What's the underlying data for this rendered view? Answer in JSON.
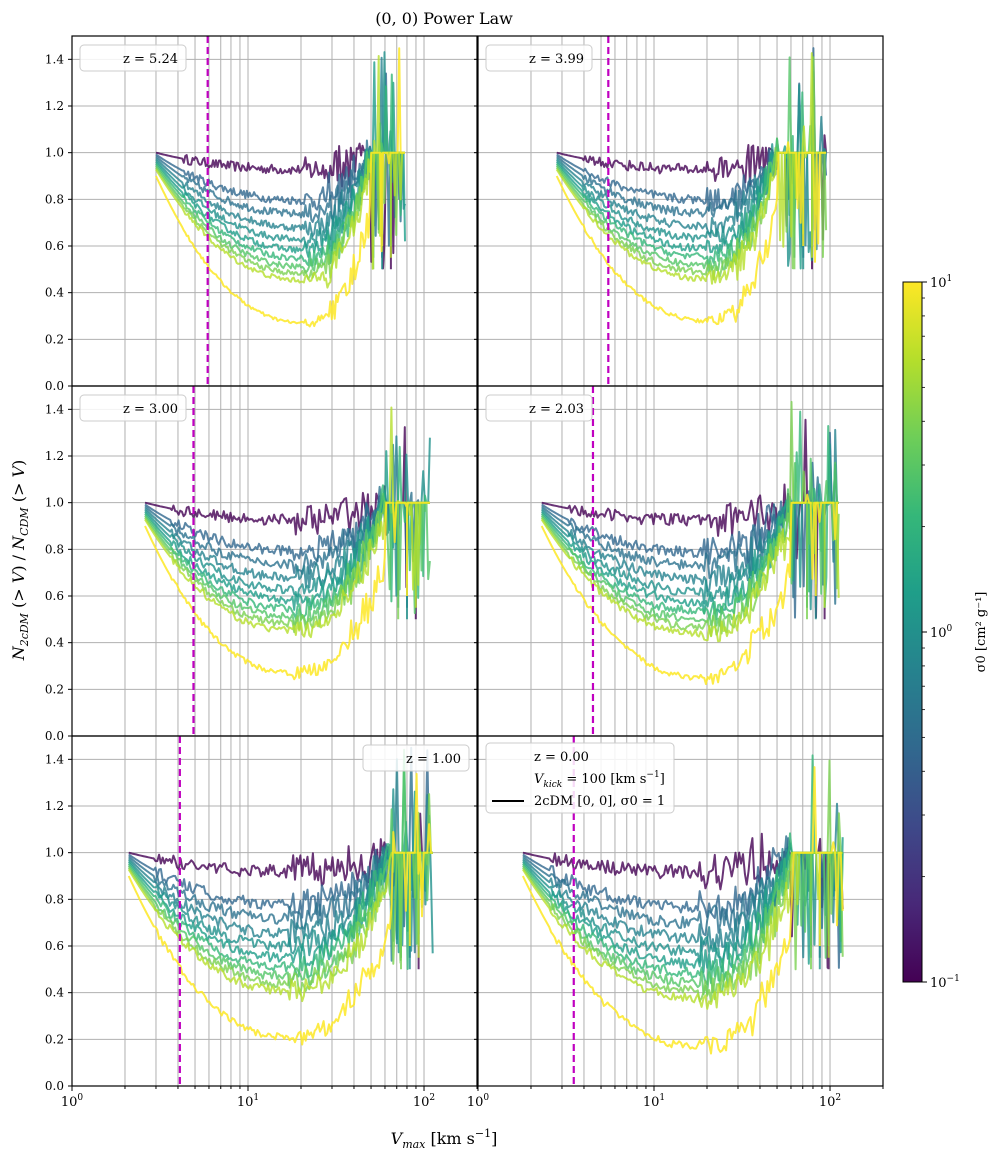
{
  "chart_data": {
    "type": "line",
    "title": "(0, 0) Power Law",
    "xlabel": "V_max [km s^-1]",
    "ylabel": "N_2cDM(>V)/N_CDM(>V)",
    "xscale": "log",
    "xlim": [
      1,
      200
    ],
    "ylim": [
      0,
      1.5
    ],
    "yticks": [
      "0.0",
      "0.2",
      "0.4",
      "0.6",
      "0.8",
      "1.0",
      "1.2",
      "1.4"
    ],
    "xticks": [
      {
        "base": "10",
        "exp": "0",
        "value": 1
      },
      {
        "base": "10",
        "exp": "1",
        "value": 10
      },
      {
        "base": "10",
        "exp": "2",
        "value": 100
      }
    ],
    "grid": true,
    "colorbar": {
      "label": "σ0 [cm² g⁻¹]",
      "scale": "log",
      "range": [
        0.1,
        10
      ],
      "ticks": [
        {
          "base": "10",
          "exp": "1",
          "value": 10
        },
        {
          "base": "10",
          "exp": "0",
          "value": 1
        },
        {
          "base": "10",
          "exp": "−1",
          "value": 0.1
        }
      ],
      "colormap": [
        "#440154",
        "#482878",
        "#3e4989",
        "#31688e",
        "#26828e",
        "#1f9e89",
        "#35b779",
        "#6ece58",
        "#b5de2b",
        "#fde725"
      ]
    },
    "legend_extra": {
      "vkick": "V_kick = 100 [km s^-1]",
      "line_label": "2cDM [0, 0], σ0 = 1"
    },
    "panels": [
      {
        "label": "z = 5.24",
        "legend_loc": "upper-left",
        "vline": 5.9,
        "vstart": 3.0,
        "vend": 78,
        "plateau_from": 50,
        "min_val": 0.27,
        "min_x": 21
      },
      {
        "label": "z = 3.99",
        "legend_loc": "upper-left",
        "vline": 5.5,
        "vstart": 2.8,
        "vend": 95,
        "plateau_from": 50,
        "min_val": 0.28,
        "min_x": 20
      },
      {
        "label": "z = 3.00",
        "legend_loc": "upper-left",
        "vline": 4.9,
        "vstart": 2.6,
        "vend": 108,
        "plateau_from": 60,
        "min_val": 0.27,
        "min_x": 18
      },
      {
        "label": "z = 2.03",
        "legend_loc": "upper-left",
        "vline": 4.5,
        "vstart": 2.3,
        "vend": 112,
        "plateau_from": 60,
        "min_val": 0.25,
        "min_x": 19
      },
      {
        "label": "z = 1.00",
        "legend_loc": "upper-right",
        "vline": 4.1,
        "vstart": 2.1,
        "vend": 112,
        "plateau_from": 65,
        "min_val": 0.21,
        "min_x": 17
      },
      {
        "label": "z = 0.00",
        "legend_loc": "upper-left-large",
        "vline": 3.5,
        "vstart": 1.8,
        "vend": 118,
        "plateau_from": 60,
        "min_val": 0.17,
        "min_x": 18
      }
    ],
    "series": [
      {
        "sigma": 0.1,
        "color": "#440154",
        "depth": 0.1
      },
      {
        "sigma": 0.3,
        "color": "#31688e",
        "depth": 0.28
      },
      {
        "sigma": 0.5,
        "color": "#2c728e",
        "depth": 0.36
      },
      {
        "sigma": 0.8,
        "color": "#26828e",
        "depth": 0.44
      },
      {
        "sigma": 1.2,
        "color": "#21918c",
        "depth": 0.51
      },
      {
        "sigma": 1.8,
        "color": "#1f9e89",
        "depth": 0.57
      },
      {
        "sigma": 2.5,
        "color": "#35b779",
        "depth": 0.62
      },
      {
        "sigma": 3.5,
        "color": "#54c568",
        "depth": 0.67
      },
      {
        "sigma": 5.0,
        "color": "#7ad151",
        "depth": 0.71
      },
      {
        "sigma": 7.0,
        "color": "#b5de2b",
        "depth": 0.75
      },
      {
        "sigma": 10.0,
        "color": "#fde725",
        "depth": 1.0
      }
    ]
  }
}
